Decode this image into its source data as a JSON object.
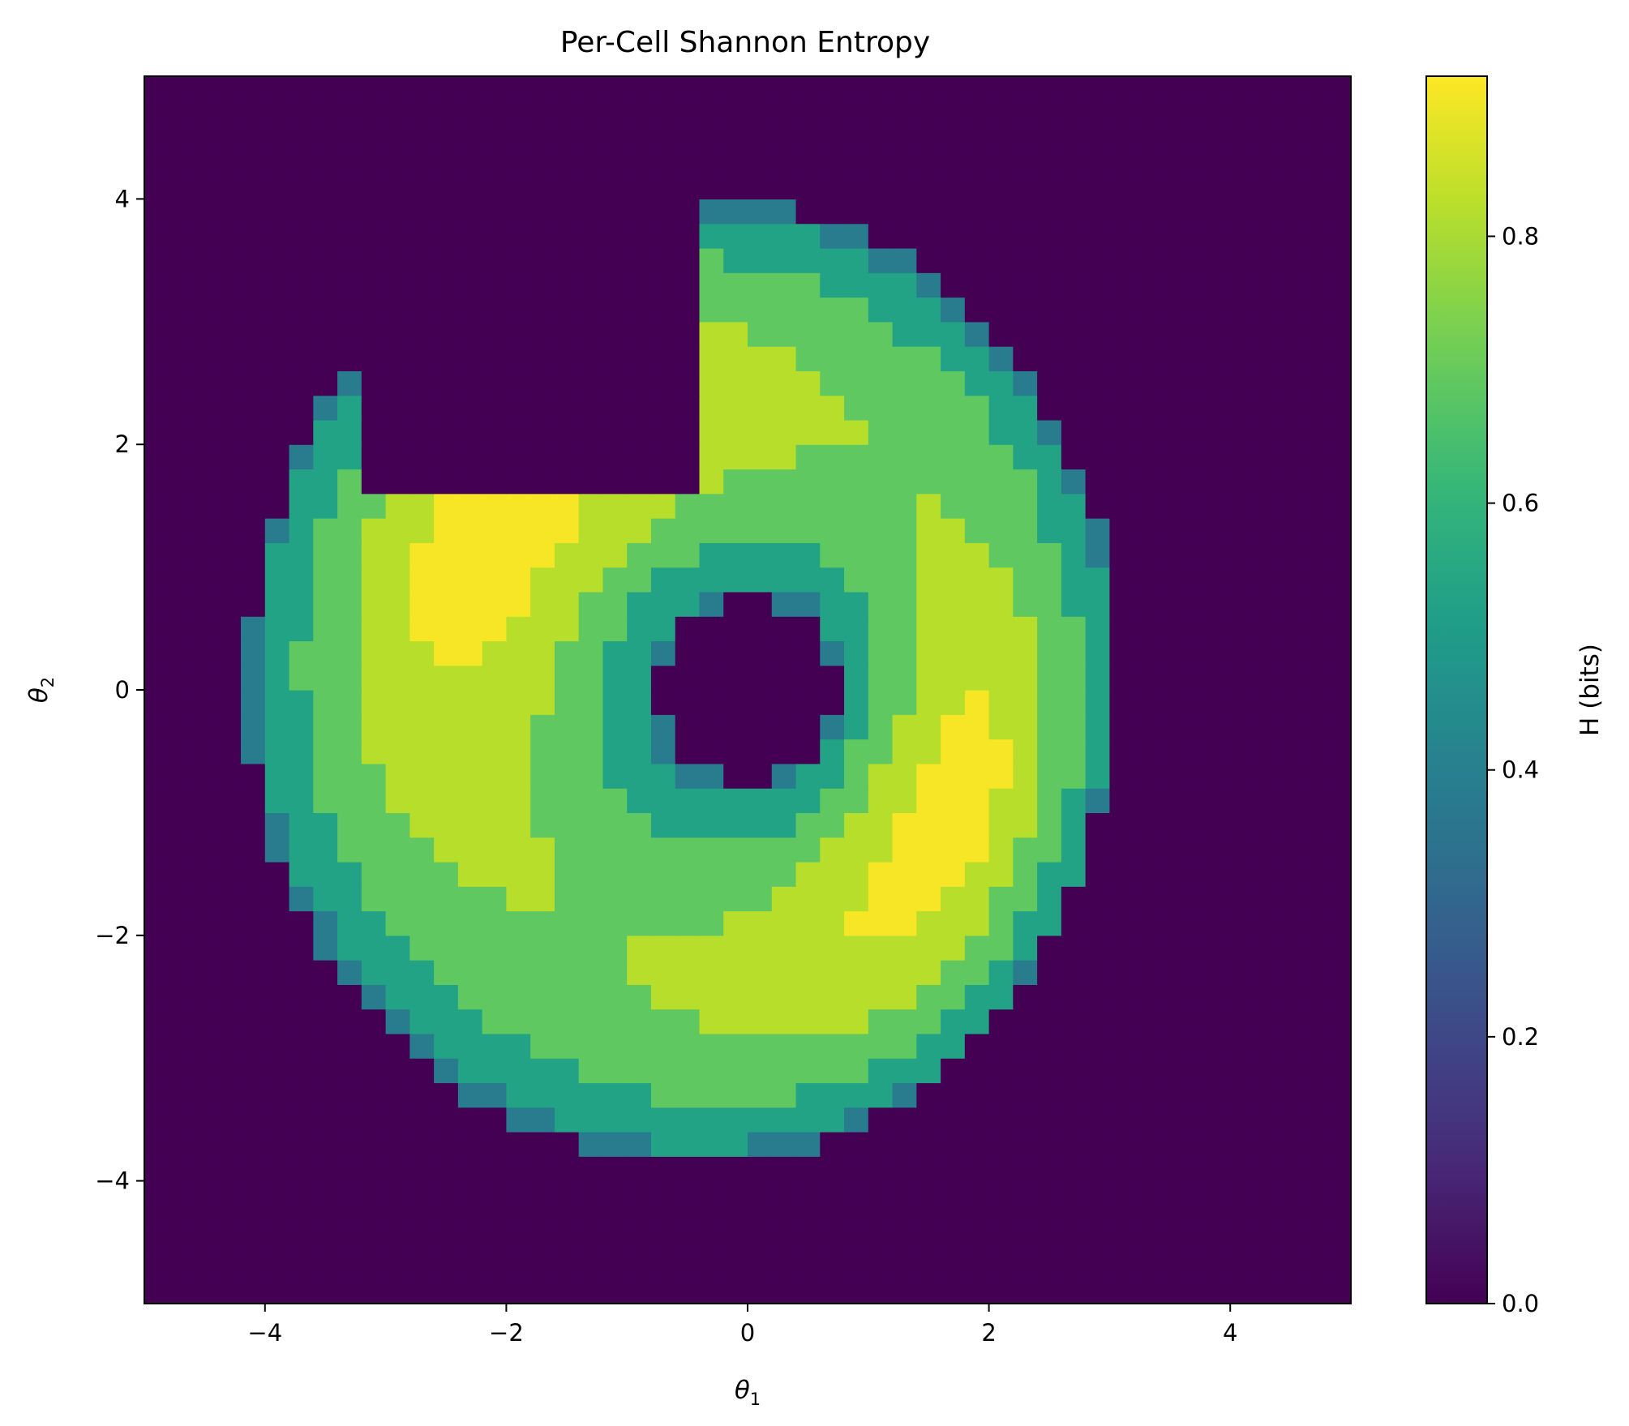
{
  "chart_data": {
    "type": "heatmap",
    "title": "Per-Cell Shannon Entropy",
    "xlabel": "θ",
    "xlabel_sub": "1",
    "ylabel": "θ",
    "ylabel_sub": "2",
    "xlim": [
      -5,
      5
    ],
    "ylim": [
      -5,
      5
    ],
    "x_ticks": [
      -4,
      -2,
      0,
      2,
      4
    ],
    "y_ticks": [
      -4,
      -2,
      0,
      2,
      4
    ],
    "x_tick_labels": [
      "−4",
      "−2",
      "0",
      "2",
      "4"
    ],
    "y_tick_labels": [
      "−4",
      "−2",
      "0",
      "2",
      "4"
    ],
    "colormap": "viridis",
    "grid": false,
    "colorbar": {
      "label": "H (bits)",
      "vmin": 0.0,
      "vmax": 0.92,
      "ticks": [
        0.0,
        0.2,
        0.4,
        0.6,
        0.8
      ],
      "tick_labels": [
        "0.0",
        "0.2",
        "0.4",
        "0.6",
        "0.8"
      ]
    },
    "grid_resolution": 50,
    "structure": {
      "description_values": "bilobed ring of entropy around origin",
      "outer_boundary_radius_range": [
        3.2,
        4.3
      ],
      "inner_hole_radius": 0.75,
      "peak_value": 0.91,
      "edge_value": 0.38,
      "upper_left_notch_value": 0.0
    }
  }
}
